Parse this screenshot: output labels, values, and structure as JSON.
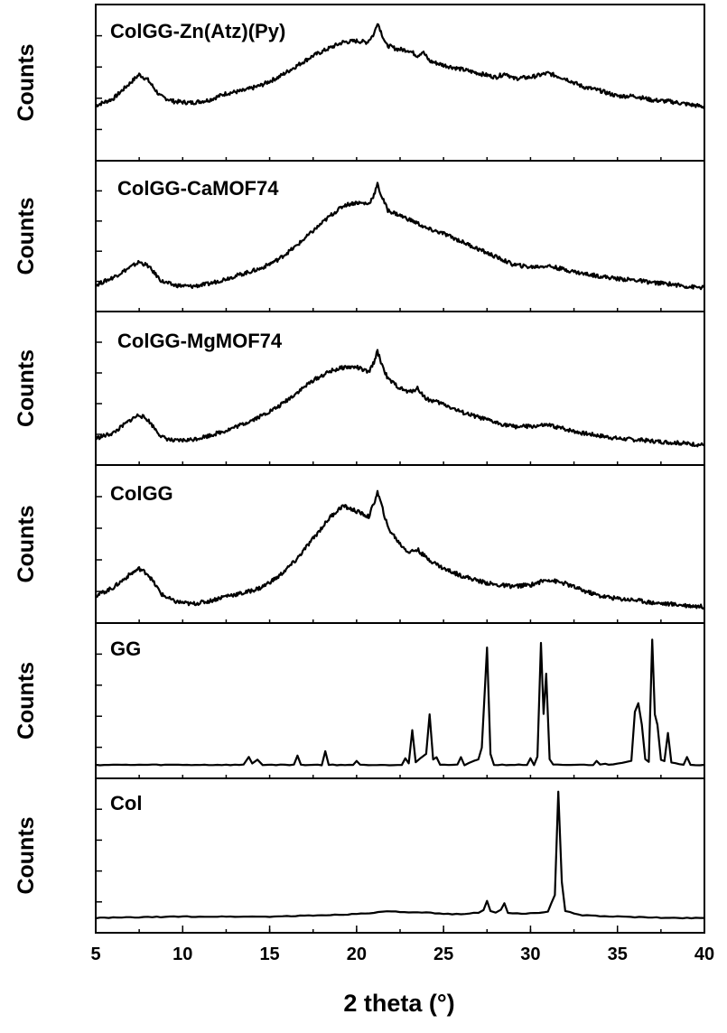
{
  "chart_data": {
    "type": "line",
    "xlabel": "2 theta (°)",
    "ylabel": "Counts",
    "xlim": [
      5,
      40
    ],
    "x_ticks": [
      "5",
      "10",
      "15",
      "20",
      "25",
      "30",
      "35",
      "40"
    ],
    "grid": false,
    "stacked_panels": true,
    "series": [
      {
        "name": "ColGG-Zn(Atz)(Py)",
        "ylim": [
          0,
          1
        ],
        "points": [
          [
            5,
            0.33
          ],
          [
            6,
            0.38
          ],
          [
            7,
            0.5
          ],
          [
            7.5,
            0.56
          ],
          [
            8,
            0.52
          ],
          [
            8.7,
            0.4
          ],
          [
            9.5,
            0.36
          ],
          [
            10.5,
            0.35
          ],
          [
            11.5,
            0.37
          ],
          [
            12.5,
            0.42
          ],
          [
            13.5,
            0.44
          ],
          [
            14.5,
            0.48
          ],
          [
            15.5,
            0.54
          ],
          [
            16.5,
            0.62
          ],
          [
            17.5,
            0.7
          ],
          [
            18.5,
            0.76
          ],
          [
            19.2,
            0.8
          ],
          [
            20,
            0.81
          ],
          [
            20.6,
            0.8
          ],
          [
            21,
            0.86
          ],
          [
            21.2,
            0.95
          ],
          [
            21.4,
            0.88
          ],
          [
            21.7,
            0.78
          ],
          [
            22.3,
            0.75
          ],
          [
            23,
            0.74
          ],
          [
            23.5,
            0.7
          ],
          [
            23.8,
            0.73
          ],
          [
            24.2,
            0.66
          ],
          [
            25,
            0.63
          ],
          [
            26,
            0.6
          ],
          [
            27,
            0.57
          ],
          [
            28,
            0.54
          ],
          [
            28.6,
            0.57
          ],
          [
            29,
            0.53
          ],
          [
            30,
            0.54
          ],
          [
            31,
            0.57
          ],
          [
            32,
            0.53
          ],
          [
            33,
            0.47
          ],
          [
            34,
            0.44
          ],
          [
            35,
            0.4
          ],
          [
            36,
            0.4
          ],
          [
            37,
            0.37
          ],
          [
            38,
            0.36
          ],
          [
            39,
            0.34
          ],
          [
            40,
            0.32
          ]
        ]
      },
      {
        "name": "ColGG-CaMOF74",
        "ylim": [
          0,
          1
        ],
        "points": [
          [
            5,
            0.12
          ],
          [
            6,
            0.18
          ],
          [
            7,
            0.26
          ],
          [
            7.5,
            0.3
          ],
          [
            8,
            0.27
          ],
          [
            8.8,
            0.15
          ],
          [
            9.5,
            0.12
          ],
          [
            10.5,
            0.11
          ],
          [
            11.5,
            0.13
          ],
          [
            12.5,
            0.17
          ],
          [
            13.5,
            0.21
          ],
          [
            14.5,
            0.25
          ],
          [
            15.5,
            0.32
          ],
          [
            16.5,
            0.42
          ],
          [
            17.5,
            0.54
          ],
          [
            18.5,
            0.66
          ],
          [
            19.3,
            0.74
          ],
          [
            20,
            0.76
          ],
          [
            20.7,
            0.75
          ],
          [
            21,
            0.82
          ],
          [
            21.2,
            0.9
          ],
          [
            21.4,
            0.82
          ],
          [
            21.8,
            0.7
          ],
          [
            22.5,
            0.66
          ],
          [
            23,
            0.63
          ],
          [
            23.5,
            0.6
          ],
          [
            24,
            0.56
          ],
          [
            25,
            0.52
          ],
          [
            26,
            0.46
          ],
          [
            27,
            0.4
          ],
          [
            28,
            0.34
          ],
          [
            29,
            0.28
          ],
          [
            30,
            0.26
          ],
          [
            31,
            0.27
          ],
          [
            32,
            0.24
          ],
          [
            33,
            0.21
          ],
          [
            34,
            0.19
          ],
          [
            35,
            0.17
          ],
          [
            36,
            0.16
          ],
          [
            37,
            0.14
          ],
          [
            38,
            0.13
          ],
          [
            39,
            0.11
          ],
          [
            40,
            0.1
          ]
        ]
      },
      {
        "name": "ColGG-MgMOF74",
        "ylim": [
          0,
          1
        ],
        "points": [
          [
            5,
            0.12
          ],
          [
            6,
            0.16
          ],
          [
            7,
            0.26
          ],
          [
            7.5,
            0.3
          ],
          [
            8,
            0.26
          ],
          [
            8.8,
            0.13
          ],
          [
            9.5,
            0.1
          ],
          [
            10.5,
            0.11
          ],
          [
            11.5,
            0.14
          ],
          [
            12.5,
            0.18
          ],
          [
            13.5,
            0.23
          ],
          [
            14.5,
            0.29
          ],
          [
            15.5,
            0.36
          ],
          [
            16.5,
            0.46
          ],
          [
            17.5,
            0.56
          ],
          [
            18.5,
            0.63
          ],
          [
            19.3,
            0.66
          ],
          [
            20,
            0.66
          ],
          [
            20.7,
            0.62
          ],
          [
            21,
            0.7
          ],
          [
            21.2,
            0.78
          ],
          [
            21.4,
            0.7
          ],
          [
            21.8,
            0.57
          ],
          [
            22.5,
            0.5
          ],
          [
            23,
            0.47
          ],
          [
            23.5,
            0.5
          ],
          [
            24,
            0.42
          ],
          [
            25,
            0.38
          ],
          [
            26,
            0.32
          ],
          [
            27,
            0.28
          ],
          [
            28,
            0.24
          ],
          [
            29,
            0.21
          ],
          [
            30,
            0.21
          ],
          [
            31,
            0.22
          ],
          [
            32,
            0.19
          ],
          [
            33,
            0.16
          ],
          [
            34,
            0.14
          ],
          [
            35,
            0.12
          ],
          [
            36,
            0.11
          ],
          [
            37,
            0.1
          ],
          [
            38,
            0.09
          ],
          [
            39,
            0.08
          ],
          [
            40,
            0.07
          ]
        ]
      },
      {
        "name": "ColGG",
        "ylim": [
          0,
          1
        ],
        "points": [
          [
            5,
            0.12
          ],
          [
            6,
            0.18
          ],
          [
            7,
            0.28
          ],
          [
            7.5,
            0.32
          ],
          [
            8,
            0.28
          ],
          [
            8.8,
            0.13
          ],
          [
            9.5,
            0.08
          ],
          [
            10.5,
            0.06
          ],
          [
            11.5,
            0.08
          ],
          [
            12.5,
            0.12
          ],
          [
            13.5,
            0.14
          ],
          [
            14.5,
            0.18
          ],
          [
            15.5,
            0.26
          ],
          [
            16.5,
            0.38
          ],
          [
            17.5,
            0.54
          ],
          [
            18.5,
            0.7
          ],
          [
            19.2,
            0.78
          ],
          [
            20,
            0.74
          ],
          [
            20.7,
            0.7
          ],
          [
            21,
            0.8
          ],
          [
            21.2,
            0.88
          ],
          [
            21.4,
            0.8
          ],
          [
            21.8,
            0.62
          ],
          [
            22.5,
            0.5
          ],
          [
            23,
            0.44
          ],
          [
            23.5,
            0.46
          ],
          [
            24,
            0.4
          ],
          [
            25,
            0.32
          ],
          [
            26,
            0.27
          ],
          [
            27,
            0.23
          ],
          [
            28,
            0.2
          ],
          [
            29,
            0.19
          ],
          [
            30,
            0.2
          ],
          [
            31,
            0.24
          ],
          [
            32,
            0.21
          ],
          [
            33,
            0.16
          ],
          [
            34,
            0.12
          ],
          [
            35,
            0.1
          ],
          [
            36,
            0.09
          ],
          [
            37,
            0.07
          ],
          [
            38,
            0.06
          ],
          [
            39,
            0.05
          ],
          [
            40,
            0.04
          ]
        ]
      },
      {
        "name": "GG",
        "ylim": [
          0,
          1
        ],
        "points": [
          [
            5,
            0.02
          ],
          [
            13.5,
            0.02
          ],
          [
            13.8,
            0.08
          ],
          [
            14.0,
            0.03
          ],
          [
            14.3,
            0.06
          ],
          [
            14.6,
            0.02
          ],
          [
            16.4,
            0.02
          ],
          [
            16.6,
            0.09
          ],
          [
            16.8,
            0.02
          ],
          [
            18.0,
            0.02
          ],
          [
            18.2,
            0.12
          ],
          [
            18.4,
            0.02
          ],
          [
            19.8,
            0.02
          ],
          [
            20.0,
            0.05
          ],
          [
            20.2,
            0.02
          ],
          [
            22.6,
            0.02
          ],
          [
            22.8,
            0.07
          ],
          [
            23.0,
            0.03
          ],
          [
            23.2,
            0.28
          ],
          [
            23.4,
            0.04
          ],
          [
            24.0,
            0.1
          ],
          [
            24.2,
            0.4
          ],
          [
            24.4,
            0.06
          ],
          [
            24.6,
            0.08
          ],
          [
            24.8,
            0.02
          ],
          [
            25.8,
            0.02
          ],
          [
            26.0,
            0.08
          ],
          [
            26.2,
            0.02
          ],
          [
            27.0,
            0.06
          ],
          [
            27.2,
            0.15
          ],
          [
            27.5,
            0.9
          ],
          [
            27.7,
            0.1
          ],
          [
            27.9,
            0.02
          ],
          [
            29.8,
            0.02
          ],
          [
            30.0,
            0.07
          ],
          [
            30.2,
            0.02
          ],
          [
            30.4,
            0.08
          ],
          [
            30.6,
            0.93
          ],
          [
            30.75,
            0.4
          ],
          [
            30.9,
            0.7
          ],
          [
            31.1,
            0.06
          ],
          [
            31.3,
            0.02
          ],
          [
            33.6,
            0.02
          ],
          [
            33.8,
            0.05
          ],
          [
            34.0,
            0.02
          ],
          [
            34.3,
            0.03
          ],
          [
            34.5,
            0.02
          ],
          [
            35.8,
            0.05
          ],
          [
            36.0,
            0.42
          ],
          [
            36.2,
            0.48
          ],
          [
            36.4,
            0.32
          ],
          [
            36.6,
            0.06
          ],
          [
            36.8,
            0.04
          ],
          [
            37.0,
            0.96
          ],
          [
            37.15,
            0.4
          ],
          [
            37.3,
            0.32
          ],
          [
            37.5,
            0.06
          ],
          [
            37.7,
            0.05
          ],
          [
            37.9,
            0.26
          ],
          [
            38.1,
            0.04
          ],
          [
            38.8,
            0.02
          ],
          [
            39.0,
            0.08
          ],
          [
            39.2,
            0.02
          ],
          [
            40,
            0.02
          ]
        ]
      },
      {
        "name": "Col",
        "ylim": [
          0,
          1
        ],
        "points": [
          [
            5,
            0.03
          ],
          [
            10,
            0.04
          ],
          [
            15,
            0.04
          ],
          [
            18,
            0.05
          ],
          [
            20,
            0.06
          ],
          [
            22,
            0.08
          ],
          [
            23,
            0.07
          ],
          [
            24,
            0.07
          ],
          [
            25,
            0.06
          ],
          [
            26,
            0.06
          ],
          [
            27,
            0.07
          ],
          [
            27.3,
            0.09
          ],
          [
            27.5,
            0.16
          ],
          [
            27.7,
            0.08
          ],
          [
            28.0,
            0.07
          ],
          [
            28.3,
            0.09
          ],
          [
            28.5,
            0.14
          ],
          [
            28.7,
            0.07
          ],
          [
            29.5,
            0.06
          ],
          [
            30.5,
            0.07
          ],
          [
            31.0,
            0.08
          ],
          [
            31.4,
            0.2
          ],
          [
            31.6,
            0.98
          ],
          [
            31.8,
            0.3
          ],
          [
            32.0,
            0.08
          ],
          [
            33,
            0.05
          ],
          [
            35,
            0.04
          ],
          [
            38,
            0.03
          ],
          [
            40,
            0.03
          ]
        ]
      }
    ]
  }
}
